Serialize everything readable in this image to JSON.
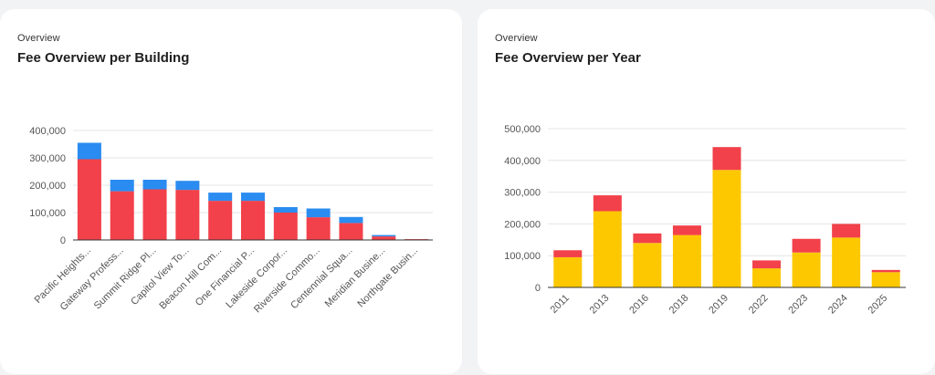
{
  "colors": {
    "red": "#f2414a",
    "blue": "#2a8cf0",
    "yellow": "#fdc800"
  },
  "cards": [
    {
      "overline": "Overview",
      "title": "Fee Overview per Building"
    },
    {
      "overline": "Overview",
      "title": "Fee Overview per Year"
    }
  ],
  "chart_data": [
    {
      "type": "bar",
      "stacked": true,
      "title": "Fee Overview per Building",
      "categories": [
        "Pacific Heights...",
        "Gateway Profess...",
        "Summit Ridge Pl...",
        "Capitol View To...",
        "Beacon Hill Com...",
        "One Financial P...",
        "Lakeside Corpor...",
        "Riverside Commo...",
        "Centennial Squa...",
        "Meridian Busine...",
        "Northgate Busin..."
      ],
      "series": [
        {
          "color": "#f2414a",
          "values": [
            295000,
            178000,
            185000,
            183000,
            143000,
            143000,
            100000,
            83000,
            62000,
            13000,
            3000
          ]
        },
        {
          "color": "#2a8cf0",
          "values": [
            60000,
            42000,
            35000,
            33000,
            30000,
            30000,
            20000,
            32000,
            22000,
            5000,
            0
          ]
        }
      ],
      "yticks": [
        0,
        100000,
        200000,
        300000,
        400000
      ],
      "ytick_labels": [
        "0",
        "100,000",
        "200,000",
        "300,000",
        "400,000"
      ],
      "ylim": [
        0,
        400000
      ],
      "grid": true
    },
    {
      "type": "bar",
      "stacked": true,
      "title": "Fee Overview per Year",
      "categories": [
        "2011",
        "2013",
        "2016",
        "2018",
        "2019",
        "2022",
        "2023",
        "2024",
        "2025"
      ],
      "series": [
        {
          "color": "#fdc800",
          "values": [
            95000,
            240000,
            140000,
            165000,
            370000,
            60000,
            110000,
            157000,
            48000
          ]
        },
        {
          "color": "#f2414a",
          "values": [
            22000,
            50000,
            30000,
            30000,
            72000,
            25000,
            43000,
            43000,
            7000
          ]
        }
      ],
      "yticks": [
        0,
        100000,
        200000,
        300000,
        400000,
        500000
      ],
      "ytick_labels": [
        "0",
        "100,000",
        "200,000",
        "300,000",
        "400,000",
        "500,000"
      ],
      "ylim": [
        0,
        500000
      ],
      "grid": true
    }
  ]
}
